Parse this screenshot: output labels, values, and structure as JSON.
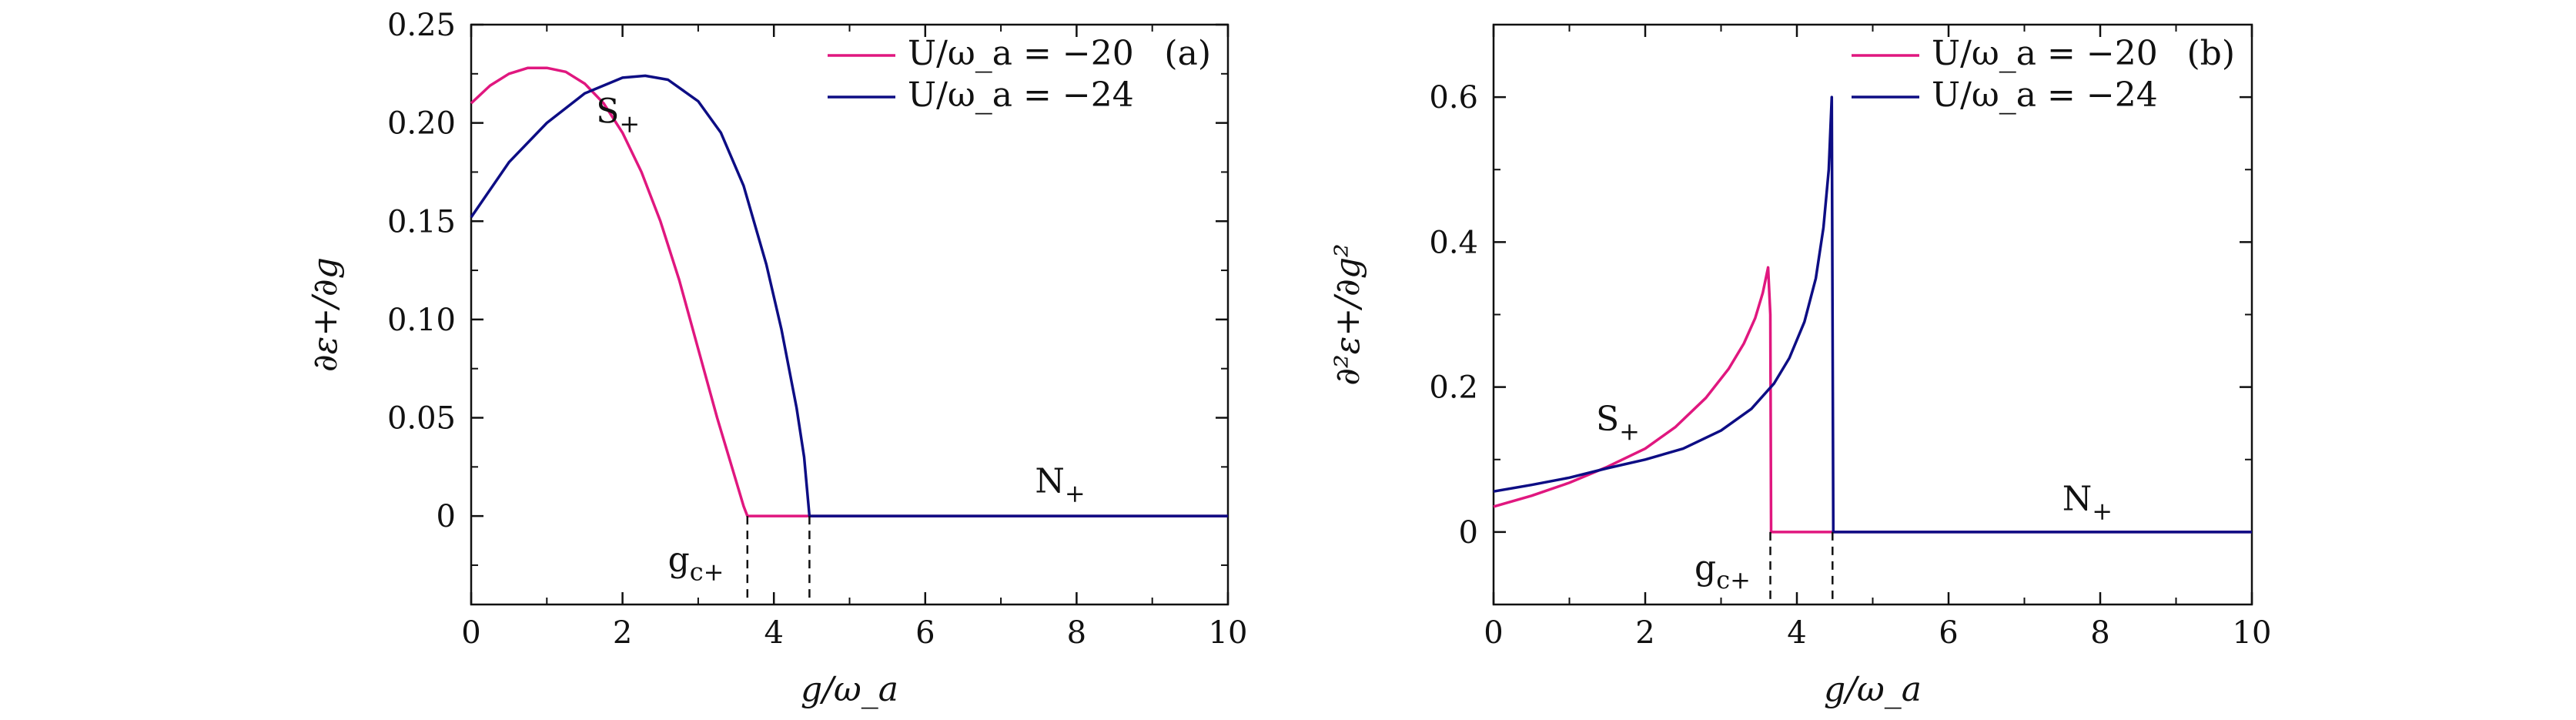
{
  "colors": {
    "series1": "#e0177f",
    "series2": "#0d0d84",
    "axis": "#111111"
  },
  "chart_data": [
    {
      "type": "line",
      "panel_label": "(a)",
      "xlabel": "g/ω_a",
      "ylabel": "∂ε+/∂g",
      "xlim": [
        0,
        10
      ],
      "ylim": [
        -0.045,
        0.25
      ],
      "xticks": [
        0,
        2,
        4,
        6,
        8,
        10
      ],
      "xtick_labels": [
        "0",
        "2",
        "4",
        "6",
        "8",
        "10"
      ],
      "yticks": [
        0,
        0.05,
        0.1,
        0.15,
        0.2,
        0.25
      ],
      "ytick_labels": [
        "0",
        "0.05",
        "0.10",
        "0.15",
        "0.20",
        "0.25"
      ],
      "series": [
        {
          "name": "U/ω_a = −20",
          "x": [
            0,
            0.25,
            0.5,
            0.75,
            1.0,
            1.25,
            1.5,
            1.75,
            2.0,
            2.25,
            2.5,
            2.75,
            3.0,
            3.25,
            3.5,
            3.6,
            3.65,
            4.0,
            4.5,
            5,
            6,
            7,
            8,
            9,
            10
          ],
          "y": [
            0.21,
            0.219,
            0.225,
            0.228,
            0.228,
            0.226,
            0.22,
            0.21,
            0.195,
            0.175,
            0.15,
            0.12,
            0.085,
            0.05,
            0.018,
            0.005,
            0.0,
            0.0,
            0.0,
            0.0,
            0.0,
            0.0,
            0.0,
            0.0,
            0.0
          ]
        },
        {
          "name": "U/ω_a = −24",
          "x": [
            0,
            0.5,
            1.0,
            1.5,
            2.0,
            2.3,
            2.6,
            3.0,
            3.3,
            3.6,
            3.9,
            4.1,
            4.3,
            4.4,
            4.47,
            5,
            6,
            7,
            8,
            9,
            10
          ],
          "y": [
            0.152,
            0.18,
            0.2,
            0.215,
            0.223,
            0.224,
            0.222,
            0.211,
            0.195,
            0.168,
            0.128,
            0.095,
            0.055,
            0.03,
            0.0,
            0.0,
            0.0,
            0.0,
            0.0,
            0.0,
            0.0
          ]
        }
      ],
      "legend_position": "top-right",
      "annotations": [
        {
          "text_main": "S",
          "text_sub": "+",
          "x": 1.65,
          "y": 0.2
        },
        {
          "text_main": "N",
          "text_sub": "+",
          "x": 7.45,
          "y": 0.012
        },
        {
          "text_main": "g",
          "text_sub": "c+",
          "x": 2.6,
          "y": -0.028
        }
      ],
      "markers": [
        3.65,
        4.47
      ]
    },
    {
      "type": "line",
      "panel_label": "(b)",
      "xlabel": "g/ω_a",
      "ylabel": "∂²ε+/∂g²",
      "xlim": [
        0,
        10
      ],
      "ylim": [
        -0.1,
        0.7
      ],
      "xticks": [
        0,
        2,
        4,
        6,
        8,
        10
      ],
      "xtick_labels": [
        "0",
        "2",
        "4",
        "6",
        "8",
        "10"
      ],
      "yticks": [
        0,
        0.2,
        0.4,
        0.6
      ],
      "ytick_labels": [
        "0",
        "0.2",
        "0.4",
        "0.6"
      ],
      "series": [
        {
          "name": "U/ω_a = −20",
          "x": [
            0,
            0.5,
            1.0,
            1.5,
            2.0,
            2.4,
            2.8,
            3.1,
            3.3,
            3.45,
            3.55,
            3.62,
            3.65,
            3.66,
            4,
            5,
            6,
            7,
            8,
            9,
            10
          ],
          "y": [
            0.035,
            0.05,
            0.068,
            0.09,
            0.115,
            0.145,
            0.185,
            0.225,
            0.26,
            0.295,
            0.33,
            0.365,
            0.3,
            0.0,
            0.0,
            0.0,
            0.0,
            0.0,
            0.0,
            0.0,
            0.0
          ]
        },
        {
          "name": "U/ω_a = −24",
          "x": [
            0,
            0.5,
            1.0,
            1.5,
            2.0,
            2.5,
            3.0,
            3.4,
            3.7,
            3.9,
            4.1,
            4.25,
            4.35,
            4.42,
            4.46,
            4.47,
            4.48,
            5,
            6,
            7,
            8,
            9,
            10
          ],
          "y": [
            0.056,
            0.065,
            0.075,
            0.088,
            0.1,
            0.115,
            0.14,
            0.17,
            0.205,
            0.24,
            0.29,
            0.35,
            0.42,
            0.5,
            0.6,
            0.3,
            0.0,
            0.0,
            0.0,
            0.0,
            0.0,
            0.0,
            0.0
          ]
        }
      ],
      "legend_position": "top-right",
      "annotations": [
        {
          "text_main": "S",
          "text_sub": "+",
          "x": 1.35,
          "y": 0.14
        },
        {
          "text_main": "N",
          "text_sub": "+",
          "x": 7.5,
          "y": 0.03
        },
        {
          "text_main": "g",
          "text_sub": "c+",
          "x": 2.65,
          "y": -0.065
        }
      ],
      "markers": [
        3.65,
        4.47
      ]
    }
  ]
}
